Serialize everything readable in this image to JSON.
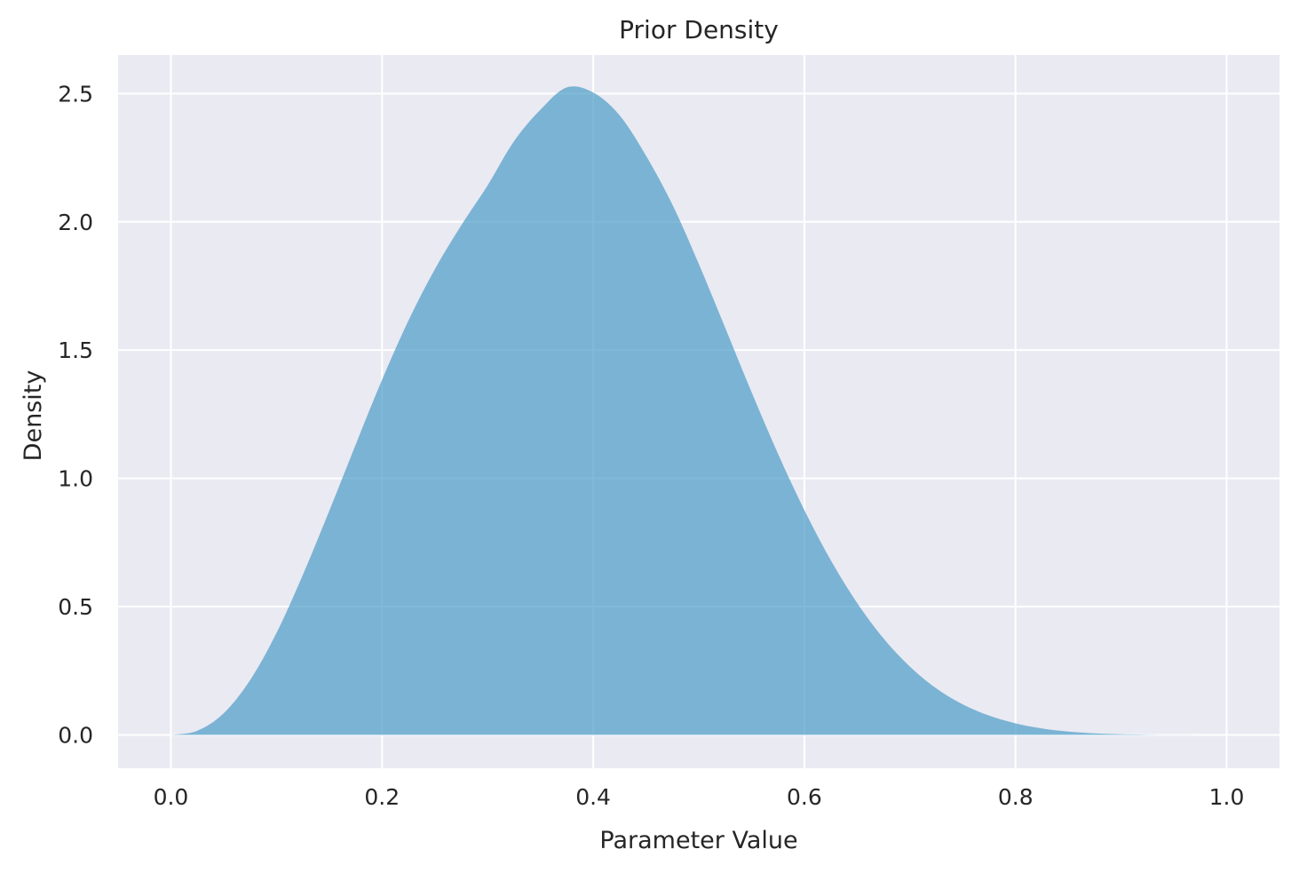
{
  "chart_data": {
    "type": "area",
    "title": "Prior Density",
    "xlabel": "Parameter Value",
    "ylabel": "Density",
    "xlim": [
      -0.05,
      1.05
    ],
    "ylim": [
      -0.13,
      2.65
    ],
    "xticks": [
      0.0,
      0.2,
      0.4,
      0.6,
      0.8,
      1.0
    ],
    "xtick_labels": [
      "0.0",
      "0.2",
      "0.4",
      "0.6",
      "0.8",
      "1.0"
    ],
    "yticks": [
      0.0,
      0.5,
      1.0,
      1.5,
      2.0,
      2.5
    ],
    "ytick_labels": [
      "0.0",
      "0.5",
      "1.0",
      "1.5",
      "2.0",
      "2.5"
    ],
    "grid": true,
    "legend": "none",
    "colors": {
      "background": "#eaeaf2",
      "grid": "#ffffff",
      "fill": "#4c9bc8",
      "fill_opacity": 0.7
    },
    "series": [
      {
        "x": [
          0.0,
          0.025,
          0.05,
          0.075,
          0.1,
          0.125,
          0.15,
          0.175,
          0.2,
          0.225,
          0.25,
          0.275,
          0.3,
          0.325,
          0.35,
          0.375,
          0.4,
          0.425,
          0.45,
          0.475,
          0.5,
          0.525,
          0.55,
          0.575,
          0.6,
          0.625,
          0.65,
          0.675,
          0.7,
          0.725,
          0.75,
          0.775,
          0.8,
          0.825,
          0.85,
          0.875,
          0.9,
          0.925,
          0.95,
          0.975,
          1.0
        ],
        "y": [
          0.0,
          0.016,
          0.084,
          0.213,
          0.397,
          0.624,
          0.873,
          1.131,
          1.384,
          1.615,
          1.815,
          1.986,
          2.142,
          2.314,
          2.437,
          2.524,
          2.504,
          2.415,
          2.258,
          2.067,
          1.836,
          1.587,
          1.336,
          1.096,
          0.876,
          0.681,
          0.514,
          0.376,
          0.266,
          0.181,
          0.119,
          0.075,
          0.045,
          0.025,
          0.013,
          0.006,
          0.0025,
          0.0009,
          0.0003,
          0.0,
          0.0
        ]
      }
    ]
  }
}
